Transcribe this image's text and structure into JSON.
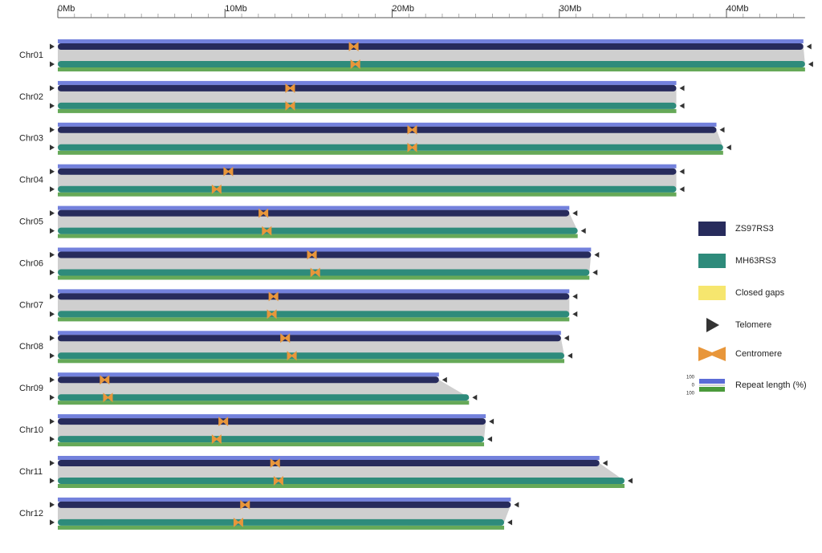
{
  "chart_data": {
    "type": "genome",
    "x_unit_ticks": null,
    "xlim": [
      0,
      44.7
    ],
    "xticks": [
      {
        "value": 0,
        "label": "0Mb"
      },
      {
        "value": 10,
        "label": "10Mb"
      },
      {
        "value": 20,
        "label": "20Mb"
      },
      {
        "value": 30,
        "label": "30Mb"
      },
      {
        "value": 40,
        "label": "40Mb"
      }
    ],
    "categories": [
      "Chr01",
      "Chr02",
      "Chr03",
      "Chr04",
      "Chr05",
      "Chr06",
      "Chr07",
      "Chr08",
      "Chr09",
      "Chr10",
      "Chr11",
      "Chr12"
    ],
    "series": [
      {
        "name": "ZS97RS3",
        "color": "#272b5c",
        "values": [
          44.6,
          37.0,
          39.4,
          37.0,
          30.6,
          31.9,
          30.6,
          30.1,
          22.8,
          25.6,
          32.4,
          27.1
        ],
        "centromeres": [
          17.7,
          13.9,
          21.2,
          10.2,
          12.3,
          15.2,
          12.9,
          13.6,
          2.8,
          9.9,
          13.0,
          11.2
        ]
      },
      {
        "name": "MH63RS3",
        "color": "#2e8b7b",
        "values": [
          44.7,
          37.0,
          39.8,
          37.0,
          31.1,
          31.8,
          30.6,
          30.3,
          24.6,
          25.5,
          33.9,
          26.7
        ],
        "centromeres": [
          17.8,
          13.9,
          21.2,
          9.5,
          12.5,
          15.4,
          12.8,
          14.0,
          3.0,
          9.5,
          13.2,
          10.8
        ]
      }
    ],
    "legend": {
      "gaps": "Closed gaps",
      "telomere": "Telomere",
      "centromere": "Centromere",
      "repeat": "Repeat length (%)",
      "repeat_ticks": [
        100,
        0,
        100
      ]
    },
    "colors": {
      "gap": "#f6e66e",
      "telomere": "#333333",
      "centromere": "#e8963a",
      "synteny": "#cfcfcf",
      "repeat_top": "#5b6bd6",
      "repeat_bottom": "#4b9a3b"
    }
  }
}
